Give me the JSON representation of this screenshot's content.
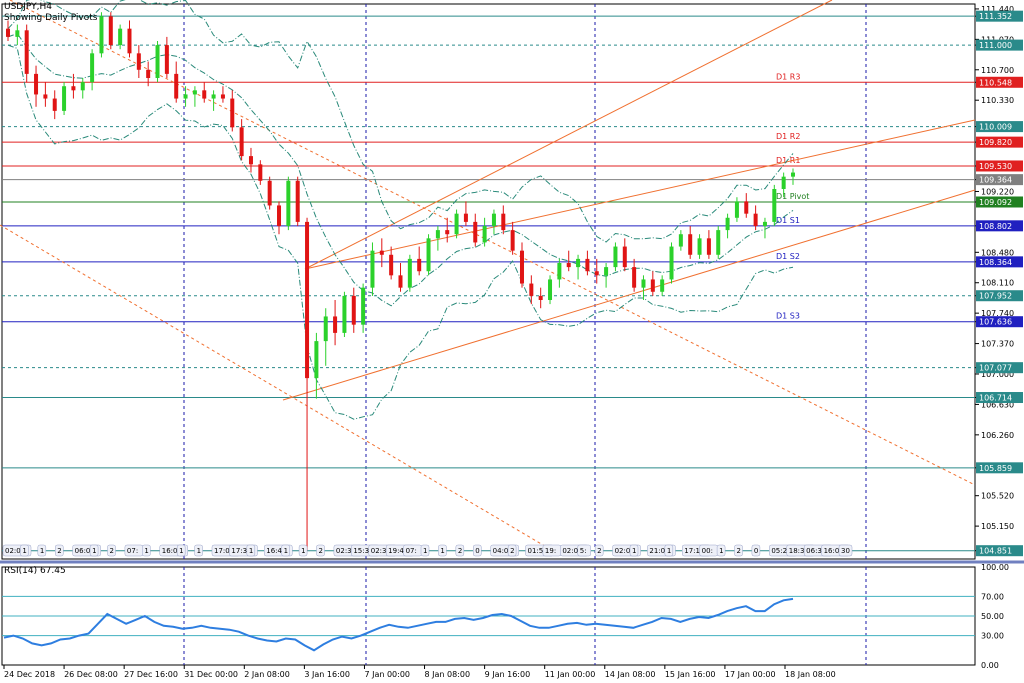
{
  "header": {
    "symbol_line": "USDJPY,H4",
    "subtitle": "Showing Daily Pivots",
    "rsi_label": "RSI(14) 67.45"
  },
  "colors": {
    "bull": "#2bd12b",
    "bear": "#e01414",
    "grid": "#1a1aa8",
    "level_red": "#e02020",
    "level_blue": "#2020c0",
    "level_green": "#208020",
    "level_teal": "#2a8a8a",
    "channel": "#f07030",
    "envelope": "#2a8a7a",
    "rsi_line": "#2e7ee0",
    "rsi_level": "#40b0c0"
  },
  "chart_data": [
    {
      "type": "candlestick",
      "symbol": "USDJPY",
      "timeframe": "H4",
      "y_range": [
        104.75,
        111.5
      ],
      "y_ticks": [
        "111.440",
        "111.352",
        "111.070",
        "111.000",
        "110.700",
        "110.548",
        "110.330",
        "110.009",
        "109.820",
        "109.530",
        "109.364",
        "109.220",
        "109.092",
        "108.802",
        "108.480",
        "108.364",
        "108.110",
        "107.952",
        "107.740",
        "107.636",
        "107.370",
        "107.077",
        "107.000",
        "106.714",
        "106.630",
        "106.260",
        "105.859",
        "105.520",
        "105.150",
        "104.851"
      ],
      "x_labels": [
        "24 Dec 2018",
        "26 Dec 08:00",
        "27 Dec 16:00",
        "31 Dec 00:00",
        "2 Jan 08:00",
        "3 Jan 16:00",
        "7 Jan 00:00",
        "8 Jan 08:00",
        "9 Jan 16:00",
        "11 Jan 00:00",
        "14 Jan 08:00",
        "15 Jan 16:00",
        "17 Jan 00:00",
        "18 Jan 08:00"
      ],
      "session_labels": [
        "02:00",
        "1",
        "1",
        "2",
        "06:00",
        "1",
        "2",
        "07:",
        "1",
        "16:00",
        "1",
        "1",
        "17:00",
        "17:30",
        "1",
        "16:45",
        "1",
        "1",
        "2",
        "02:30",
        "15:30",
        "02:30",
        "19:40",
        "07:",
        "1",
        "1",
        "2",
        "0",
        "04:00",
        "2",
        "01:50",
        "19:",
        "02:00",
        "5:",
        "2",
        "02:00",
        "1",
        "21:00",
        "1",
        "17:19",
        "00:",
        "1",
        "2",
        "0",
        "05:20",
        "18:30",
        "06:30",
        "16:05",
        "30"
      ],
      "levels": [
        {
          "value": 111.352,
          "label": "111.352",
          "name": "",
          "style": "solid",
          "color": "teal"
        },
        {
          "value": 111.0,
          "label": "111.000",
          "name": "",
          "style": "dashed",
          "color": "teal"
        },
        {
          "value": 110.548,
          "label": "110.548",
          "name": "D1 R3",
          "style": "solid",
          "color": "red"
        },
        {
          "value": 110.009,
          "label": "110.009",
          "name": "",
          "style": "dashed",
          "color": "teal"
        },
        {
          "value": 109.82,
          "label": "109.820",
          "name": "D1 R2",
          "style": "solid",
          "color": "red"
        },
        {
          "value": 109.53,
          "label": "109.530",
          "name": "D1 R1",
          "style": "solid",
          "color": "red"
        },
        {
          "value": 109.364,
          "label": "109.364",
          "name": "",
          "style": "solid",
          "color": "gray"
        },
        {
          "value": 109.092,
          "label": "109.092",
          "name": "D1 Pivot",
          "style": "solid",
          "color": "green"
        },
        {
          "value": 108.802,
          "label": "108.802",
          "name": "D1 S1",
          "style": "solid",
          "color": "blue"
        },
        {
          "value": 108.364,
          "label": "108.364",
          "name": "D1 S2",
          "style": "solid",
          "color": "blue"
        },
        {
          "value": 107.952,
          "label": "107.952",
          "name": "",
          "style": "dashed",
          "color": "teal"
        },
        {
          "value": 107.636,
          "label": "107.636",
          "name": "D1 S3",
          "style": "solid",
          "color": "blue"
        },
        {
          "value": 107.077,
          "label": "107.077",
          "name": "",
          "style": "dashed",
          "color": "teal"
        },
        {
          "value": 106.714,
          "label": "106.714",
          "name": "",
          "style": "solid",
          "color": "teal"
        },
        {
          "value": 105.859,
          "label": "105.859",
          "name": "",
          "style": "solid",
          "color": "teal"
        },
        {
          "value": 104.851,
          "label": "104.851",
          "name": "",
          "style": "solid",
          "color": "teal"
        }
      ],
      "candles": [
        [
          111.2,
          111.3,
          111.05,
          111.1
        ],
        [
          111.1,
          111.25,
          111.0,
          111.18
        ],
        [
          111.18,
          111.25,
          110.55,
          110.65
        ],
        [
          110.65,
          110.75,
          110.25,
          110.4
        ],
        [
          110.4,
          110.55,
          110.25,
          110.35
        ],
        [
          110.35,
          110.45,
          110.1,
          110.2
        ],
        [
          110.2,
          110.55,
          110.15,
          110.5
        ],
        [
          110.5,
          110.65,
          110.35,
          110.45
        ],
        [
          110.45,
          110.6,
          110.35,
          110.55
        ],
        [
          110.55,
          110.95,
          110.45,
          110.9
        ],
        [
          110.9,
          111.4,
          110.85,
          111.35
        ],
        [
          111.35,
          111.4,
          110.95,
          111.0
        ],
        [
          111.0,
          111.25,
          110.95,
          111.2
        ],
        [
          111.2,
          111.3,
          110.85,
          110.9
        ],
        [
          110.9,
          111.0,
          110.6,
          110.7
        ],
        [
          110.7,
          110.8,
          110.5,
          110.6
        ],
        [
          110.6,
          111.05,
          110.55,
          111.0
        ],
        [
          111.0,
          111.1,
          110.6,
          110.65
        ],
        [
          110.65,
          110.8,
          110.3,
          110.35
        ],
        [
          110.35,
          110.5,
          110.25,
          110.4
        ],
        [
          110.4,
          110.5,
          110.25,
          110.45
        ],
        [
          110.45,
          110.55,
          110.3,
          110.35
        ],
        [
          110.35,
          110.45,
          110.2,
          110.4
        ],
        [
          110.4,
          110.5,
          110.3,
          110.35
        ],
        [
          110.35,
          110.45,
          109.95,
          110.0
        ],
        [
          110.0,
          110.1,
          109.6,
          109.65
        ],
        [
          109.65,
          109.75,
          109.45,
          109.55
        ],
        [
          109.55,
          109.6,
          109.3,
          109.35
        ],
        [
          109.35,
          109.4,
          109.0,
          109.05
        ],
        [
          109.05,
          109.1,
          108.7,
          108.8
        ],
        [
          108.8,
          109.4,
          108.75,
          109.35
        ],
        [
          109.35,
          109.4,
          108.8,
          108.85
        ],
        [
          108.85,
          108.9,
          104.85,
          106.95
        ],
        [
          106.95,
          107.5,
          106.7,
          107.4
        ],
        [
          107.4,
          107.8,
          107.1,
          107.7
        ],
        [
          107.7,
          107.9,
          107.35,
          107.5
        ],
        [
          107.5,
          108.0,
          107.45,
          107.95
        ],
        [
          107.95,
          108.05,
          107.5,
          107.6
        ],
        [
          107.6,
          108.1,
          107.5,
          108.05
        ],
        [
          108.05,
          108.6,
          107.95,
          108.5
        ],
        [
          108.5,
          108.65,
          108.3,
          108.45
        ],
        [
          108.45,
          108.55,
          108.15,
          108.2
        ],
        [
          108.2,
          108.35,
          108.0,
          108.05
        ],
        [
          108.05,
          108.45,
          108.0,
          108.4
        ],
        [
          108.4,
          108.55,
          108.2,
          108.25
        ],
        [
          108.25,
          108.7,
          108.2,
          108.65
        ],
        [
          108.65,
          108.8,
          108.5,
          108.75
        ],
        [
          108.75,
          108.9,
          108.6,
          108.7
        ],
        [
          108.7,
          109.0,
          108.65,
          108.95
        ],
        [
          108.95,
          109.1,
          108.8,
          108.85
        ],
        [
          108.85,
          108.95,
          108.55,
          108.6
        ],
        [
          108.6,
          108.9,
          108.55,
          108.8
        ],
        [
          108.8,
          109.0,
          108.7,
          108.95
        ],
        [
          108.95,
          109.05,
          108.7,
          108.75
        ],
        [
          108.75,
          108.85,
          108.45,
          108.5
        ],
        [
          108.5,
          108.6,
          108.05,
          108.1
        ],
        [
          108.1,
          108.2,
          107.85,
          107.95
        ],
        [
          107.95,
          108.05,
          107.8,
          107.9
        ],
        [
          107.9,
          108.2,
          107.85,
          108.15
        ],
        [
          108.15,
          108.4,
          108.05,
          108.35
        ],
        [
          108.35,
          108.5,
          108.25,
          108.3
        ],
        [
          108.3,
          108.45,
          108.15,
          108.4
        ],
        [
          108.4,
          108.5,
          108.2,
          108.25
        ],
        [
          108.25,
          108.4,
          108.1,
          108.2
        ],
        [
          108.2,
          108.35,
          108.05,
          108.3
        ],
        [
          108.3,
          108.6,
          108.25,
          108.55
        ],
        [
          108.55,
          108.65,
          108.25,
          108.3
        ],
        [
          108.3,
          108.4,
          108.0,
          108.05
        ],
        [
          108.05,
          108.2,
          107.9,
          108.15
        ],
        [
          108.15,
          108.25,
          107.95,
          108.0
        ],
        [
          108.0,
          108.2,
          107.95,
          108.15
        ],
        [
          108.15,
          108.6,
          108.1,
          108.55
        ],
        [
          108.55,
          108.75,
          108.5,
          108.7
        ],
        [
          108.7,
          108.8,
          108.4,
          108.45
        ],
        [
          108.45,
          108.7,
          108.4,
          108.65
        ],
        [
          108.65,
          108.75,
          108.4,
          108.45
        ],
        [
          108.45,
          108.8,
          108.4,
          108.75
        ],
        [
          108.75,
          108.95,
          108.65,
          108.9
        ],
        [
          108.9,
          109.15,
          108.85,
          109.1
        ],
        [
          109.1,
          109.2,
          108.9,
          108.95
        ],
        [
          108.95,
          109.05,
          108.75,
          108.8
        ],
        [
          108.8,
          108.9,
          108.65,
          108.85
        ],
        [
          108.85,
          109.3,
          108.8,
          109.25
        ],
        [
          109.25,
          109.45,
          109.15,
          109.4
        ],
        [
          109.4,
          109.5,
          109.3,
          109.45
        ]
      ]
    },
    {
      "type": "line",
      "name": "RSI(14)",
      "last_value": 67.45,
      "ylim": [
        0,
        100
      ],
      "y_ticks": [
        "100.00",
        "70.00",
        "50.00",
        "30.00",
        "0.00"
      ],
      "levels": [
        70,
        50,
        30
      ],
      "values": [
        28,
        30,
        27,
        22,
        20,
        22,
        26,
        27,
        30,
        32,
        42,
        52,
        47,
        42,
        46,
        50,
        44,
        40,
        39,
        37,
        38,
        40,
        38,
        37,
        36,
        34,
        30,
        27,
        25,
        24,
        27,
        26,
        20,
        15,
        21,
        26,
        29,
        27,
        30,
        34,
        38,
        41,
        39,
        38,
        40,
        42,
        44,
        44,
        47,
        48,
        46,
        48,
        51,
        52,
        50,
        45,
        40,
        38,
        38,
        40,
        42,
        43,
        41,
        42,
        41,
        40,
        39,
        38,
        41,
        44,
        48,
        47,
        44,
        47,
        49,
        48,
        51,
        55,
        58,
        60,
        55,
        55,
        62,
        66,
        67.45
      ]
    }
  ]
}
